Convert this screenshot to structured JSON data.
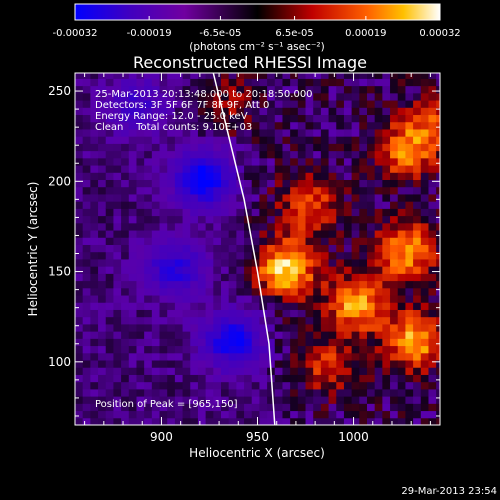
{
  "colorbar": {
    "tick_labels": [
      "-0.00032",
      "-0.00019",
      "-6.5e-05",
      "6.5e-05",
      "0.00019",
      "0.00032"
    ],
    "units": "(photons cm⁻² s⁻¹ asec⁻²)",
    "range": [
      -0.00032,
      0.00032
    ],
    "colormap": [
      "#0000ff",
      "#4000c0",
      "#7000a0",
      "#000000",
      "#c00000",
      "#ff6000",
      "#ffc000",
      "#ffffff"
    ]
  },
  "chart_data": {
    "type": "heatmap",
    "title": "Reconstructed RHESSI Image",
    "xlabel": "Heliocentric X (arcsec)",
    "ylabel": "Heliocentric Y (arcsec)",
    "xlim": [
      855,
      1045
    ],
    "ylim": [
      65,
      260
    ],
    "xticks": [
      900,
      950,
      1000
    ],
    "yticks": [
      100,
      150,
      200,
      250
    ],
    "limb_line": [
      [
        927,
        260
      ],
      [
        935,
        225
      ],
      [
        943,
        190
      ],
      [
        950,
        150
      ],
      [
        956,
        110
      ],
      [
        959,
        65
      ]
    ],
    "bright_sources": [
      {
        "x": 963,
        "y": 150,
        "peak": 0.00032
      },
      {
        "x": 1000,
        "y": 130,
        "peak": 0.00028
      },
      {
        "x": 1025,
        "y": 160,
        "peak": 0.00026
      },
      {
        "x": 1030,
        "y": 110,
        "peak": 0.00027
      },
      {
        "x": 1025,
        "y": 215,
        "peak": 0.00022
      },
      {
        "x": 975,
        "y": 185,
        "peak": 0.00018
      },
      {
        "x": 1040,
        "y": 230,
        "peak": 0.00016
      },
      {
        "x": 985,
        "y": 95,
        "peak": 0.00015
      },
      {
        "x": 930,
        "y": 240,
        "peak": 0.0001
      }
    ],
    "dark_sources": [
      {
        "x": 920,
        "y": 200,
        "peak": -0.00028
      },
      {
        "x": 935,
        "y": 110,
        "peak": -0.00025
      },
      {
        "x": 905,
        "y": 150,
        "peak": -0.0002
      },
      {
        "x": 885,
        "y": 240,
        "peak": -0.00015
      }
    ]
  },
  "annotations": [
    "25-Mar-2013 20:13:48.000 to 20:18:50.000",
    "Detectors: 3F 5F 6F 7F 8F 9F, Att 0",
    "Energy Range: 12.0 - 25.0 keV",
    "Clean    Total counts: 9.10E+03"
  ],
  "peak_label": "Position of Peak = [965,150]",
  "footer_date": "29-Mar-2013 23:54"
}
